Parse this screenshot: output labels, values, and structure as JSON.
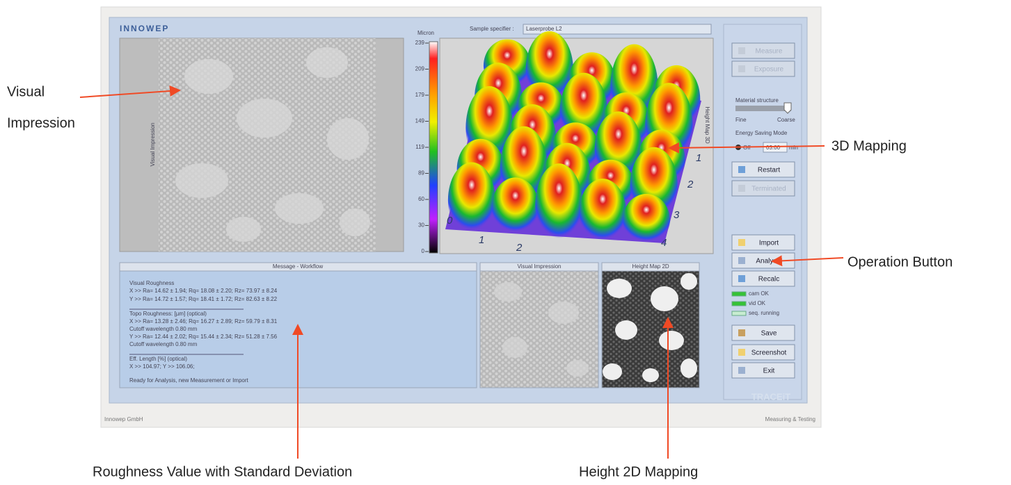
{
  "annotations": {
    "visual": "Visual",
    "impression": "Impression",
    "mapping_3d": "3D Mapping",
    "operation": "Operation Button",
    "roughness": "Roughness Value with Standard Deviation",
    "height_2d": "Height 2D Mapping"
  },
  "window": {
    "logo": "INNOWEP",
    "sample_label": "Sample specifier :",
    "sample_value": "Laserprobe L2",
    "colorbar_title": "Micron",
    "colorbar_ticks": [
      239,
      209,
      179,
      149,
      119,
      89,
      60,
      30,
      0
    ],
    "left_panel_label": "Visual Impression",
    "plot_label": "Height Map 3D",
    "plot_axis_a": [
      "0",
      "1",
      "2"
    ],
    "plot_axis_b": [
      "1",
      "2",
      "3",
      "4"
    ],
    "controls": {
      "material": "Material structure",
      "fine": "Fine",
      "coarse": "Coarse",
      "energy": "Energy Saving Mode",
      "off": "Off",
      "time": "03:00",
      "unit": "min"
    },
    "buttons": [
      "Measure",
      "Exposure",
      "Restart",
      "Terminated",
      "Import",
      "Analysis",
      "Recalc",
      "Save",
      "Screenshot",
      "Exit"
    ],
    "status": [
      "cam OK",
      "vid OK",
      "seq. running"
    ],
    "message_title": "Message - Workflow",
    "message_lines": [
      "Visual Roughness",
      "X >> Ra= 14.62 ± 1.94; Rq= 18.08 ± 2.20; Rz= 73.97 ± 8.24",
      "Y >> Ra= 14.72 ± 1.57; Rq= 18.41 ± 1.72; Rz= 82.63 ± 8.22",
      "Topo Roughness: [µm] (optical)",
      "X >> Ra= 13.28 ± 2.46; Rq= 16.27 ± 2.89; Rz= 59.79 ± 8.31",
      "Cutoff wavelength 0.80 mm",
      "Y >> Ra= 12.44 ± 2.02; Rq= 15.44 ± 2.34; Rz= 51.28 ± 7.56",
      "Cutoff wavelength 0.80 mm",
      "Eff. Length [%] (optical)",
      "X >> 104.97; Y >> 106.06;",
      "Ready for Analysis, new Measurement or Import"
    ],
    "visual_title": "Visual Impression",
    "height_title": "Height Map 2D",
    "watermark": "TRACEiT",
    "footer_left": "Innowep GmbH",
    "footer_right": "Measuring & Testing"
  }
}
